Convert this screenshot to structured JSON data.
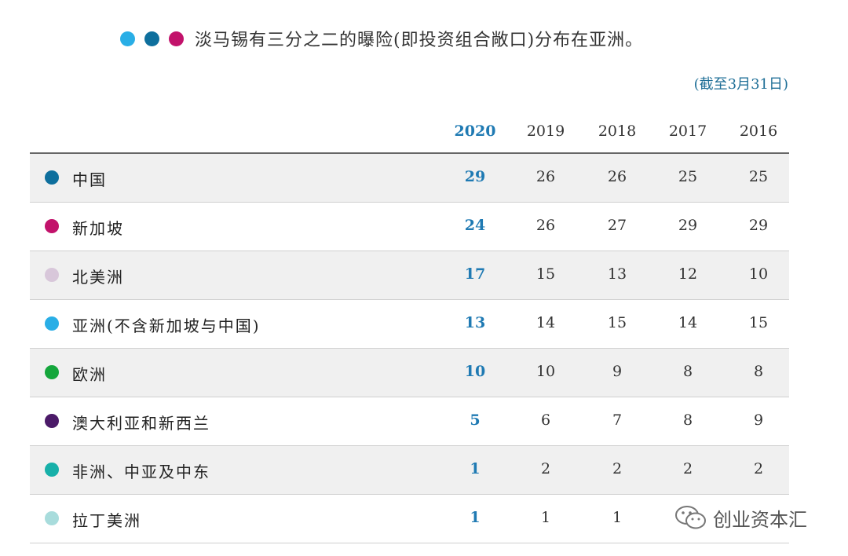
{
  "header": {
    "dots": [
      "#29aee6",
      "#0e6f9d",
      "#c2126b"
    ],
    "title": "淡马锡有三分之二的曝险(即投资组合敞口)分布在亚洲。",
    "as_of": "(截至3月31日)"
  },
  "table": {
    "years": [
      "2020",
      "2019",
      "2018",
      "2017",
      "2016"
    ],
    "rows": [
      {
        "label": "中国",
        "color": "#0e6f9d",
        "values": [
          "29",
          "26",
          "26",
          "25",
          "25"
        ]
      },
      {
        "label": "新加坡",
        "color": "#c2126b",
        "values": [
          "24",
          "26",
          "27",
          "29",
          "29"
        ]
      },
      {
        "label": "北美洲",
        "color": "#d8c7da",
        "values": [
          "17",
          "15",
          "13",
          "12",
          "10"
        ]
      },
      {
        "label": "亚洲(不含新加坡与中国)",
        "color": "#29aee6",
        "values": [
          "13",
          "14",
          "15",
          "14",
          "15"
        ]
      },
      {
        "label": "欧洲",
        "color": "#15a63c",
        "values": [
          "10",
          "10",
          "9",
          "8",
          "8"
        ]
      },
      {
        "label": "澳大利亚和新西兰",
        "color": "#4b1a68",
        "values": [
          "5",
          "6",
          "7",
          "8",
          "9"
        ]
      },
      {
        "label": "非洲、中亚及中东",
        "color": "#17b0a9",
        "values": [
          "1",
          "2",
          "2",
          "2",
          "2"
        ]
      },
      {
        "label": "拉丁美洲",
        "color": "#a8dcdc",
        "values": [
          "1",
          "1",
          "1",
          "",
          ""
        ]
      }
    ]
  },
  "watermark": {
    "text": "创业资本汇",
    "icon": "wechat-icon"
  }
}
